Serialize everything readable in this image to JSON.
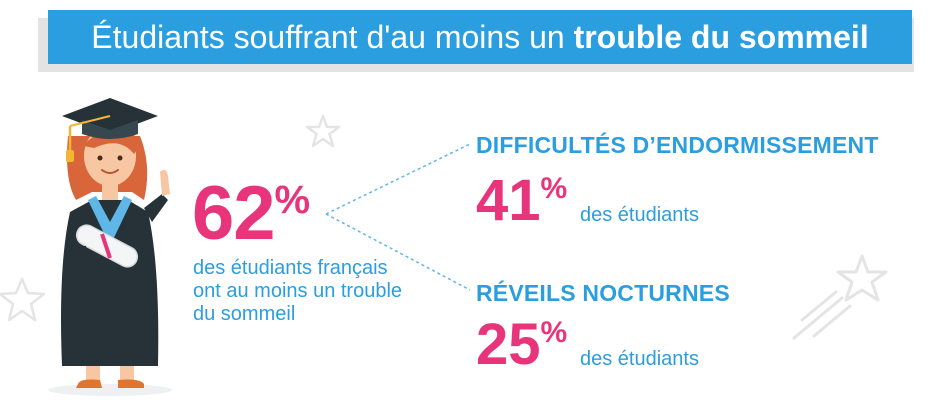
{
  "title": {
    "regular": "Étudiants souffrant d'au moins un ",
    "bold": "trouble du sommeil"
  },
  "main_stat": {
    "value": "62",
    "unit": "%",
    "description": "des étudiants français ont au moins un trouble du sommeil"
  },
  "stats": [
    {
      "title": "DIFFICULTÉS D’ENDORMISSEMENT",
      "value": "41",
      "unit": "%",
      "label": "des étudiants"
    },
    {
      "title": "RÉVEILS NOCTURNES",
      "value": "25",
      "unit": "%",
      "label": "des étudiants"
    }
  ],
  "colors": {
    "blue": "#2b9ee0",
    "pink": "#e8347a",
    "banner_shadow": "#e3e3e3",
    "gown": "#263238",
    "hair": "#d9663a"
  },
  "icons": [
    "star-icon",
    "shooting-star-icon",
    "graduate-illustration"
  ]
}
